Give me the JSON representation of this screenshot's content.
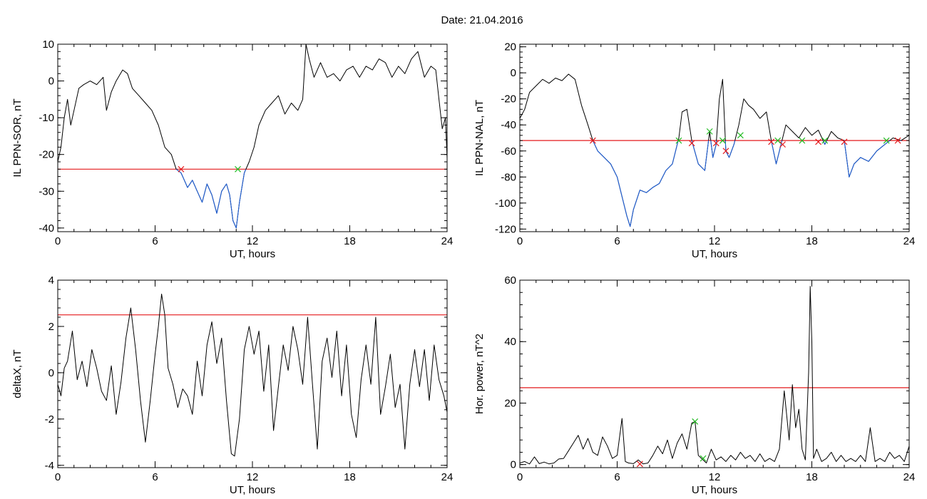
{
  "page": {
    "title": "Date:  21.04.2016"
  },
  "colors": {
    "line": "#000000",
    "subthreshold": "#1f5fd6",
    "threshold": "#e41a1c",
    "cross_down": "#e41a1c",
    "cross_up": "#22bb22",
    "frame": "#000000"
  },
  "chart_data": [
    {
      "id": "sor",
      "type": "line",
      "xlabel": "UT, hours",
      "ylabel": "IL PPN-SOR, nT",
      "xlim": [
        0,
        24
      ],
      "ylim": [
        -41,
        10
      ],
      "xticks": [
        0,
        6,
        12,
        18,
        24
      ],
      "yticks": [
        10,
        0,
        -10,
        -20,
        -30,
        -40
      ],
      "threshold": -24,
      "color_below_threshold": true,
      "series": [
        {
          "x": [
            0,
            0.2,
            0.4,
            0.6,
            0.8,
            1.0,
            1.3,
            1.6,
            2.0,
            2.4,
            2.8,
            3.0,
            3.3,
            3.6,
            4.0,
            4.3,
            4.6,
            5.0,
            5.4,
            5.8,
            6.2,
            6.6,
            7.0,
            7.3,
            7.6,
            7.8,
            8.0,
            8.3,
            8.6,
            8.9,
            9.2,
            9.5,
            9.8,
            10.1,
            10.4,
            10.6,
            10.8,
            11.0,
            11.2,
            11.5,
            11.8,
            12.1,
            12.4,
            12.8,
            13.2,
            13.6,
            14.0,
            14.4,
            14.8,
            15.1,
            15.3,
            15.5,
            15.8,
            16.2,
            16.6,
            17.0,
            17.4,
            17.8,
            18.2,
            18.6,
            19.0,
            19.4,
            19.8,
            20.2,
            20.6,
            21.0,
            21.4,
            21.8,
            22.2,
            22.6,
            23.0,
            23.3,
            23.5,
            23.7,
            23.9,
            24.0
          ],
          "y": [
            -22,
            -18,
            -10,
            -5,
            -12,
            -8,
            -2,
            -1,
            0,
            -1,
            1,
            -8,
            -3,
            0,
            3,
            2,
            -2,
            -4,
            -6,
            -8,
            -12,
            -18,
            -20,
            -24,
            -25,
            -27,
            -29,
            -27,
            -30,
            -33,
            -28,
            -31,
            -36,
            -30,
            -28,
            -31,
            -38,
            -40,
            -33,
            -25,
            -22,
            -18,
            -12,
            -8,
            -6,
            -4,
            -9,
            -6,
            -8,
            -5,
            10,
            6,
            1,
            5,
            1,
            2,
            0,
            3,
            4,
            1,
            4,
            3,
            6,
            5,
            1,
            4,
            2,
            6,
            8,
            1,
            4,
            3,
            -5,
            -13,
            -10,
            -21
          ]
        }
      ],
      "crossings": [
        {
          "x": 7.6,
          "y": -24,
          "dir": "down"
        },
        {
          "x": 11.1,
          "y": -24,
          "dir": "up"
        }
      ]
    },
    {
      "id": "nal",
      "type": "line",
      "xlabel": "UT, hours",
      "ylabel": "IL PPN-NAL, nT",
      "xlim": [
        0,
        24
      ],
      "ylim": [
        -122,
        22
      ],
      "xticks": [
        0,
        6,
        12,
        18,
        24
      ],
      "yticks": [
        20,
        0,
        -20,
        -40,
        -60,
        -80,
        -100,
        -120
      ],
      "threshold": -52,
      "color_below_threshold": true,
      "series": [
        {
          "x": [
            0,
            0.3,
            0.6,
            1.0,
            1.4,
            1.8,
            2.2,
            2.6,
            3.0,
            3.4,
            3.8,
            4.2,
            4.5,
            4.8,
            5.2,
            5.6,
            6.0,
            6.3,
            6.6,
            6.8,
            7.0,
            7.4,
            7.8,
            8.2,
            8.6,
            9.0,
            9.4,
            9.8,
            10.0,
            10.3,
            10.6,
            11.0,
            11.4,
            11.7,
            11.9,
            12.1,
            12.3,
            12.5,
            12.7,
            12.9,
            13.2,
            13.5,
            13.8,
            14.1,
            14.4,
            14.8,
            15.2,
            15.5,
            15.8,
            16.1,
            16.4,
            16.8,
            17.2,
            17.6,
            18.0,
            18.4,
            18.8,
            19.2,
            19.6,
            20.0,
            20.3,
            20.6,
            21.0,
            21.5,
            22.0,
            22.5,
            23.0,
            23.5,
            24.0
          ],
          "y": [
            -35,
            -28,
            -15,
            -10,
            -5,
            -8,
            -4,
            -6,
            -1,
            -5,
            -25,
            -40,
            -52,
            -60,
            -65,
            -70,
            -80,
            -95,
            -110,
            -118,
            -105,
            -90,
            -92,
            -88,
            -85,
            -75,
            -70,
            -50,
            -30,
            -28,
            -52,
            -70,
            -75,
            -45,
            -65,
            -55,
            -20,
            -5,
            -60,
            -65,
            -55,
            -40,
            -20,
            -25,
            -28,
            -35,
            -30,
            -52,
            -70,
            -55,
            -40,
            -45,
            -50,
            -42,
            -48,
            -44,
            -55,
            -45,
            -50,
            -52,
            -80,
            -70,
            -65,
            -68,
            -60,
            -55,
            -50,
            -52,
            -48
          ]
        }
      ],
      "crossings": [
        {
          "x": 4.5,
          "y": -52,
          "dir": "down"
        },
        {
          "x": 9.8,
          "y": -52,
          "dir": "up"
        },
        {
          "x": 10.6,
          "y": -54,
          "dir": "down"
        },
        {
          "x": 11.7,
          "y": -45,
          "dir": "up"
        },
        {
          "x": 12.1,
          "y": -54,
          "dir": "down"
        },
        {
          "x": 12.5,
          "y": -52,
          "dir": "up"
        },
        {
          "x": 12.7,
          "y": -60,
          "dir": "down"
        },
        {
          "x": 13.6,
          "y": -48,
          "dir": "up"
        },
        {
          "x": 15.5,
          "y": -53,
          "dir": "down"
        },
        {
          "x": 15.9,
          "y": -52,
          "dir": "up"
        },
        {
          "x": 16.2,
          "y": -55,
          "dir": "down"
        },
        {
          "x": 17.4,
          "y": -52,
          "dir": "up"
        },
        {
          "x": 18.4,
          "y": -53,
          "dir": "down"
        },
        {
          "x": 18.8,
          "y": -52,
          "dir": "up"
        },
        {
          "x": 20.0,
          "y": -53,
          "dir": "down"
        },
        {
          "x": 22.6,
          "y": -52,
          "dir": "up"
        },
        {
          "x": 23.3,
          "y": -52,
          "dir": "down"
        }
      ]
    },
    {
      "id": "deltax",
      "type": "line",
      "xlabel": "UT, hours",
      "ylabel": "deltaX, nT",
      "xlim": [
        0,
        24
      ],
      "ylim": [
        -4.1,
        4
      ],
      "xticks": [
        0,
        6,
        12,
        18,
        24
      ],
      "yticks": [
        4,
        2,
        0,
        -2,
        -4
      ],
      "threshold": 2.5,
      "color_below_threshold": false,
      "series": [
        {
          "x": [
            0,
            0.2,
            0.4,
            0.6,
            0.9,
            1.2,
            1.5,
            1.8,
            2.1,
            2.4,
            2.7,
            3.0,
            3.3,
            3.6,
            3.9,
            4.2,
            4.5,
            4.8,
            5.1,
            5.4,
            5.7,
            6.0,
            6.2,
            6.4,
            6.6,
            6.8,
            7.1,
            7.4,
            7.7,
            8.0,
            8.3,
            8.6,
            8.9,
            9.2,
            9.5,
            9.8,
            10.1,
            10.4,
            10.7,
            10.9,
            11.2,
            11.5,
            11.8,
            12.1,
            12.4,
            12.7,
            13.0,
            13.3,
            13.6,
            13.9,
            14.2,
            14.5,
            14.8,
            15.1,
            15.4,
            15.7,
            16.0,
            16.3,
            16.6,
            16.9,
            17.2,
            17.5,
            17.8,
            18.1,
            18.4,
            18.7,
            19.0,
            19.3,
            19.6,
            19.9,
            20.2,
            20.5,
            20.8,
            21.1,
            21.4,
            21.7,
            22.0,
            22.3,
            22.6,
            22.9,
            23.2,
            23.5,
            23.8,
            24.0
          ],
          "y": [
            -0.5,
            -1.0,
            0.2,
            0.5,
            1.8,
            -0.3,
            0.5,
            -0.6,
            1.0,
            0.2,
            -0.8,
            -1.2,
            0.3,
            -1.8,
            -0.4,
            1.5,
            2.8,
            1.0,
            -1.2,
            -3.0,
            -1.2,
            0.8,
            2.0,
            3.4,
            2.5,
            0.2,
            -0.5,
            -1.5,
            -0.7,
            -1.0,
            -1.8,
            0.5,
            -1.0,
            1.2,
            2.2,
            0.4,
            1.5,
            -1.2,
            -3.5,
            -3.6,
            -2.0,
            1.0,
            2.0,
            0.8,
            1.8,
            -0.8,
            1.2,
            -2.5,
            -0.6,
            1.2,
            0.1,
            2.0,
            1.0,
            -0.5,
            2.4,
            -0.5,
            -3.3,
            0.5,
            1.5,
            -0.2,
            1.8,
            -1.0,
            1.2,
            -1.8,
            -2.8,
            -0.3,
            1.2,
            -0.5,
            2.4,
            -1.8,
            -0.6,
            0.8,
            -1.5,
            -0.5,
            -3.3,
            -0.5,
            1.0,
            -0.6,
            1.0,
            -1.2,
            1.2,
            -0.3,
            -1.0,
            -1.7
          ]
        }
      ],
      "crossings": []
    },
    {
      "id": "hpower",
      "type": "line",
      "xlabel": "UT, hours",
      "ylabel": "Hor. power, nT^2",
      "xlim": [
        0,
        24
      ],
      "ylim": [
        -1,
        60
      ],
      "xticks": [
        0,
        6,
        12,
        18,
        24
      ],
      "yticks": [
        60,
        40,
        20,
        0
      ],
      "threshold": 25,
      "color_below_threshold": false,
      "series": [
        {
          "x": [
            0,
            0.3,
            0.6,
            0.9,
            1.2,
            1.5,
            1.8,
            2.1,
            2.4,
            2.7,
            3.0,
            3.3,
            3.6,
            3.9,
            4.2,
            4.5,
            4.8,
            5.1,
            5.4,
            5.7,
            6.0,
            6.3,
            6.5,
            6.7,
            7.0,
            7.3,
            7.6,
            7.9,
            8.2,
            8.5,
            8.8,
            9.1,
            9.4,
            9.7,
            10.0,
            10.3,
            10.6,
            10.8,
            11.0,
            11.2,
            11.5,
            11.8,
            12.1,
            12.4,
            12.7,
            13.0,
            13.3,
            13.6,
            13.9,
            14.2,
            14.5,
            14.8,
            15.1,
            15.4,
            15.7,
            16.0,
            16.3,
            16.6,
            16.8,
            17.0,
            17.2,
            17.4,
            17.6,
            17.8,
            17.9,
            18.0,
            18.1,
            18.3,
            18.6,
            18.9,
            19.2,
            19.5,
            19.8,
            20.1,
            20.4,
            20.7,
            21.0,
            21.3,
            21.6,
            21.9,
            22.2,
            22.5,
            22.8,
            23.1,
            23.4,
            23.7,
            24.0
          ],
          "y": [
            0.5,
            1.0,
            0.2,
            2.5,
            0.3,
            0.8,
            0.2,
            0.5,
            1.8,
            2.0,
            4.5,
            7.0,
            9.5,
            5.0,
            8.5,
            4.0,
            3.0,
            9.0,
            6.0,
            2.0,
            3.0,
            15.0,
            1.0,
            0.5,
            0.3,
            1.5,
            0.2,
            0.5,
            3.0,
            6.0,
            3.5,
            8.0,
            2.0,
            7.0,
            10.0,
            5.0,
            13.5,
            14.0,
            3.0,
            2.0,
            0.5,
            5.0,
            1.5,
            2.5,
            1.0,
            3.0,
            1.5,
            4.0,
            2.0,
            3.0,
            1.0,
            3.5,
            1.0,
            2.0,
            1.0,
            5.0,
            24.0,
            8.0,
            26.0,
            12.0,
            18.0,
            5.0,
            1.5,
            30.0,
            58.0,
            40.0,
            2.0,
            5.0,
            1.0,
            2.0,
            4.0,
            1.0,
            3.0,
            1.0,
            2.0,
            1.0,
            3.0,
            1.0,
            12.0,
            1.0,
            2.0,
            1.0,
            4.0,
            2.0,
            3.0,
            1.0,
            6.0
          ]
        }
      ],
      "crossings": [
        {
          "x": 7.4,
          "y": 0.2,
          "dir": "down"
        },
        {
          "x": 10.8,
          "y": 14.0,
          "dir": "up"
        },
        {
          "x": 11.3,
          "y": 2.0,
          "dir": "up"
        }
      ]
    }
  ]
}
